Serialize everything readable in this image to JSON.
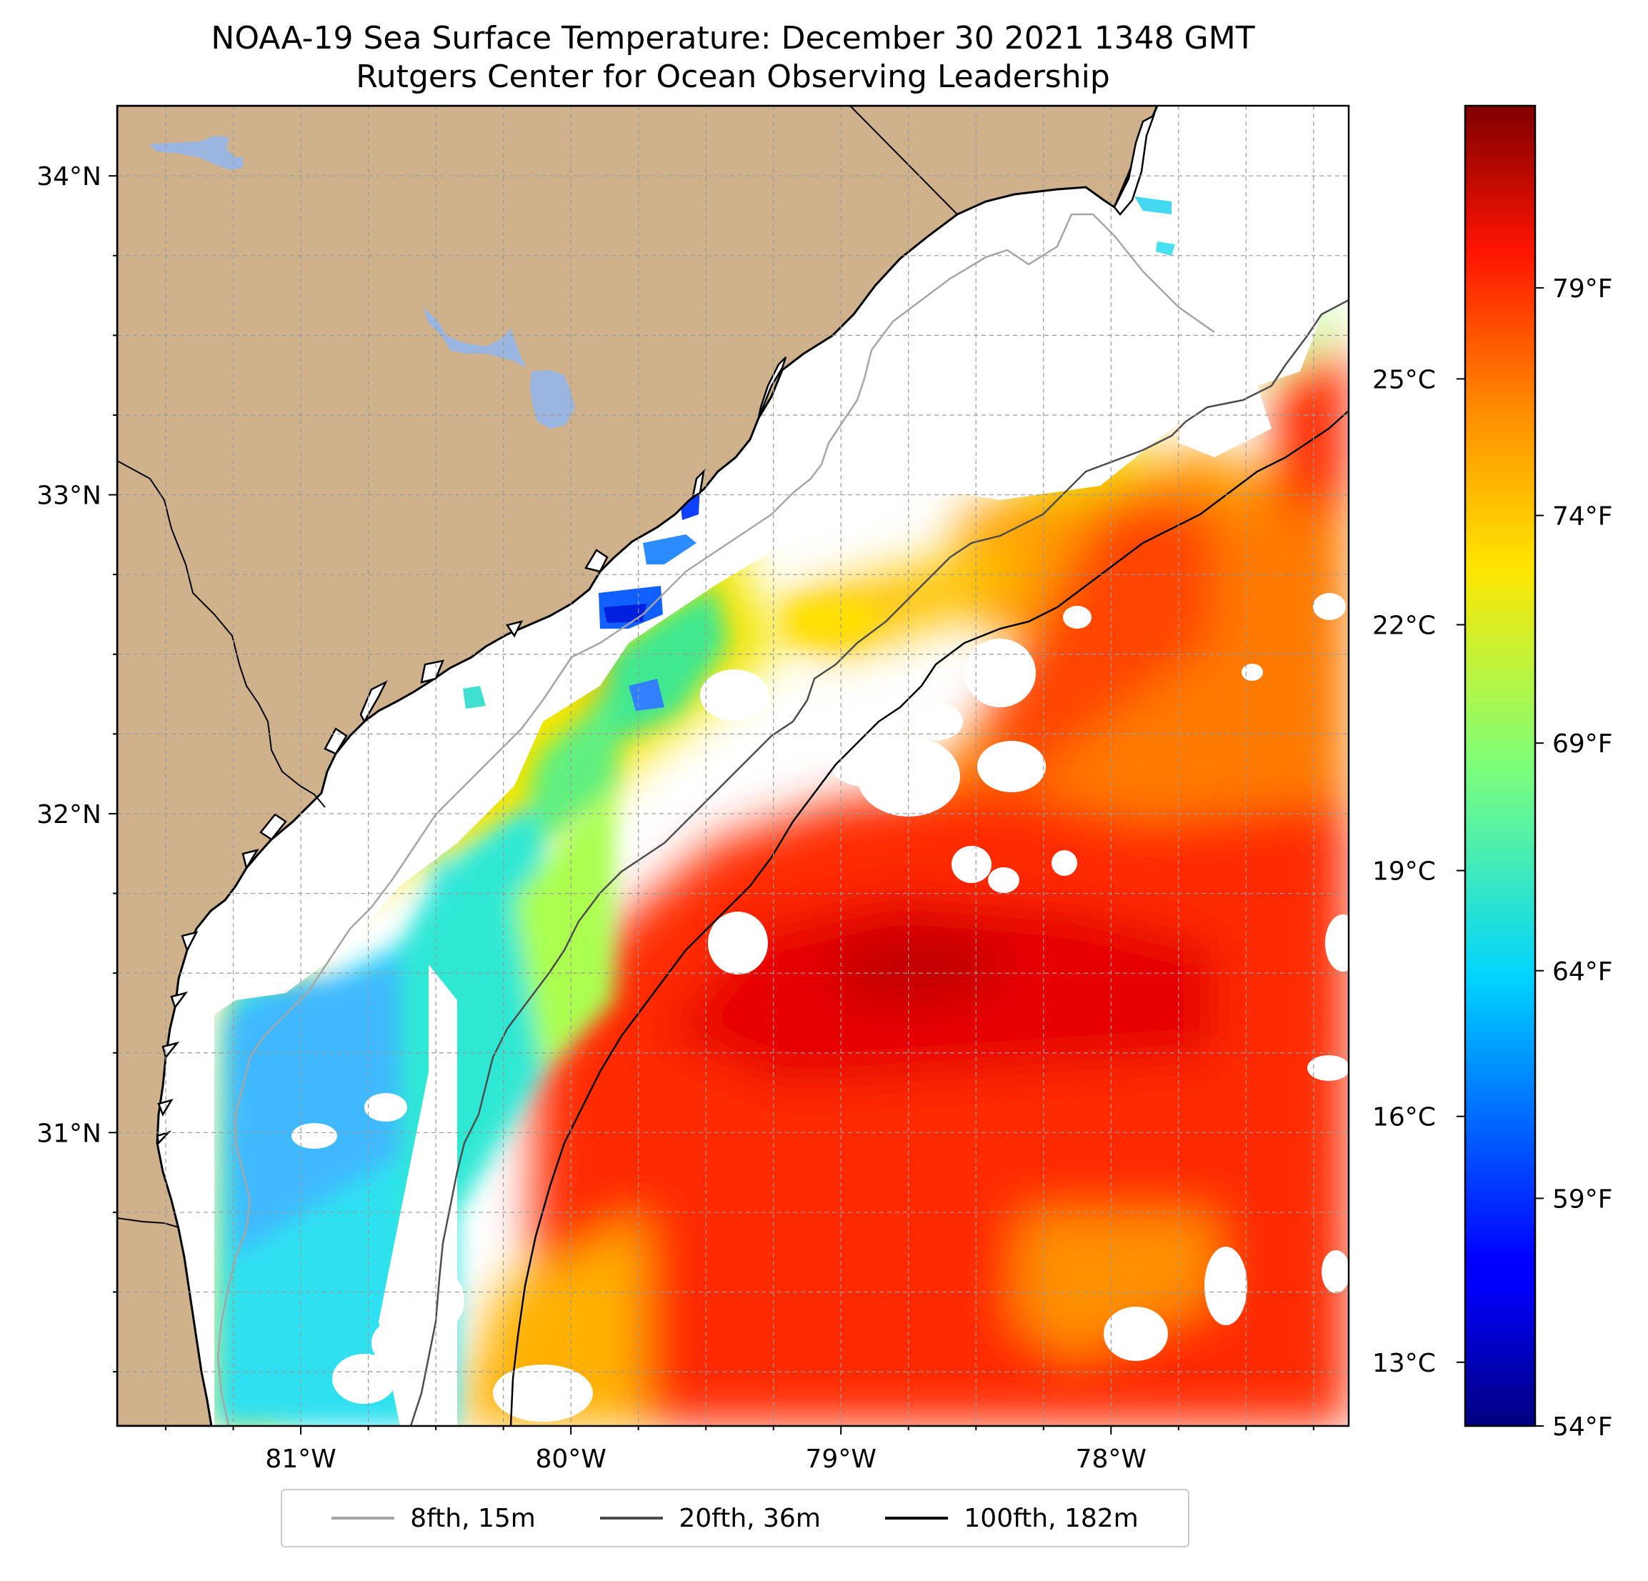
{
  "header": {
    "title": "NOAA-19 Sea Surface Temperature: December 30 2021 1348 GMT",
    "subtitle": "Rutgers Center for Ocean Observing Leadership"
  },
  "map": {
    "extent": {
      "lon_min": -81.68,
      "lon_max": -77.12,
      "lat_min": 30.08,
      "lat_max": 34.22
    },
    "lat_ticks": [
      {
        "value": 34,
        "label": "34°N"
      },
      {
        "value": 33,
        "label": "33°N"
      },
      {
        "value": 32,
        "label": "32°N"
      },
      {
        "value": 31,
        "label": "31°N"
      }
    ],
    "lon_ticks": [
      {
        "value": -81,
        "label": "81°W"
      },
      {
        "value": -80,
        "label": "80°W"
      },
      {
        "value": -79,
        "label": "79°W"
      },
      {
        "value": -78,
        "label": "78°W"
      }
    ],
    "gridlines": "dashed",
    "colors": {
      "land": "#cfb28b",
      "lakes": "#9ab6e0",
      "coastline": "#000000",
      "no_data": "#ffffff"
    }
  },
  "colorbar": {
    "colormap": "jet",
    "range_f": [
      54,
      83
    ],
    "celsius_ticks": [
      {
        "value": 25,
        "label": "25°C"
      },
      {
        "value": 22,
        "label": "22°C"
      },
      {
        "value": 19,
        "label": "19°C"
      },
      {
        "value": 16,
        "label": "16°C"
      },
      {
        "value": 13,
        "label": "13°C"
      }
    ],
    "fahrenheit_ticks": [
      {
        "value": 79,
        "label": "79°F"
      },
      {
        "value": 74,
        "label": "74°F"
      },
      {
        "value": 69,
        "label": "69°F"
      },
      {
        "value": 64,
        "label": "64°F"
      },
      {
        "value": 59,
        "label": "59°F"
      },
      {
        "value": 54,
        "label": "54°F"
      }
    ]
  },
  "legend": {
    "items": [
      {
        "label": "8fth, 15m",
        "color": "#a6a6a6"
      },
      {
        "label": "20fth, 36m",
        "color": "#4d4d4d"
      },
      {
        "label": "100fth, 182m",
        "color": "#000000"
      }
    ]
  }
}
